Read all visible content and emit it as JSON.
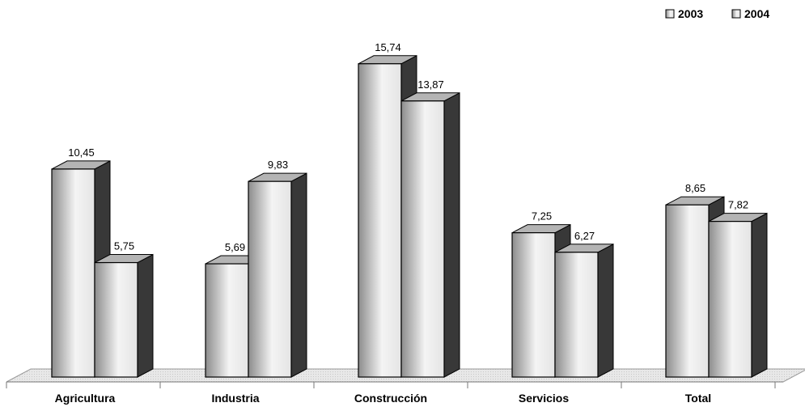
{
  "chart_data": {
    "type": "bar",
    "categories": [
      "Agricultura",
      "Industria",
      "Construcción",
      "Servicios",
      "Total"
    ],
    "series": [
      {
        "name": "2003",
        "values": [
          10.45,
          5.69,
          15.74,
          7.25,
          8.65
        ]
      },
      {
        "name": "2004",
        "values": [
          5.75,
          9.83,
          13.87,
          6.27,
          7.82
        ]
      }
    ],
    "value_labels": [
      [
        "10,45",
        "5,69",
        "15,74",
        "7,25",
        "8,65"
      ],
      [
        "5,75",
        "9,83",
        "13,87",
        "6,27",
        "7,82"
      ]
    ],
    "ylim": [
      0,
      16
    ],
    "grid": false,
    "legend_position": "top-right",
    "style": "3d-bars",
    "colors": {
      "front_light": "#f4f4f4",
      "front_dark": "#8c8c8c",
      "top": "#b4b4b4",
      "side": "#383838",
      "floor": "#e6e6e6"
    }
  }
}
